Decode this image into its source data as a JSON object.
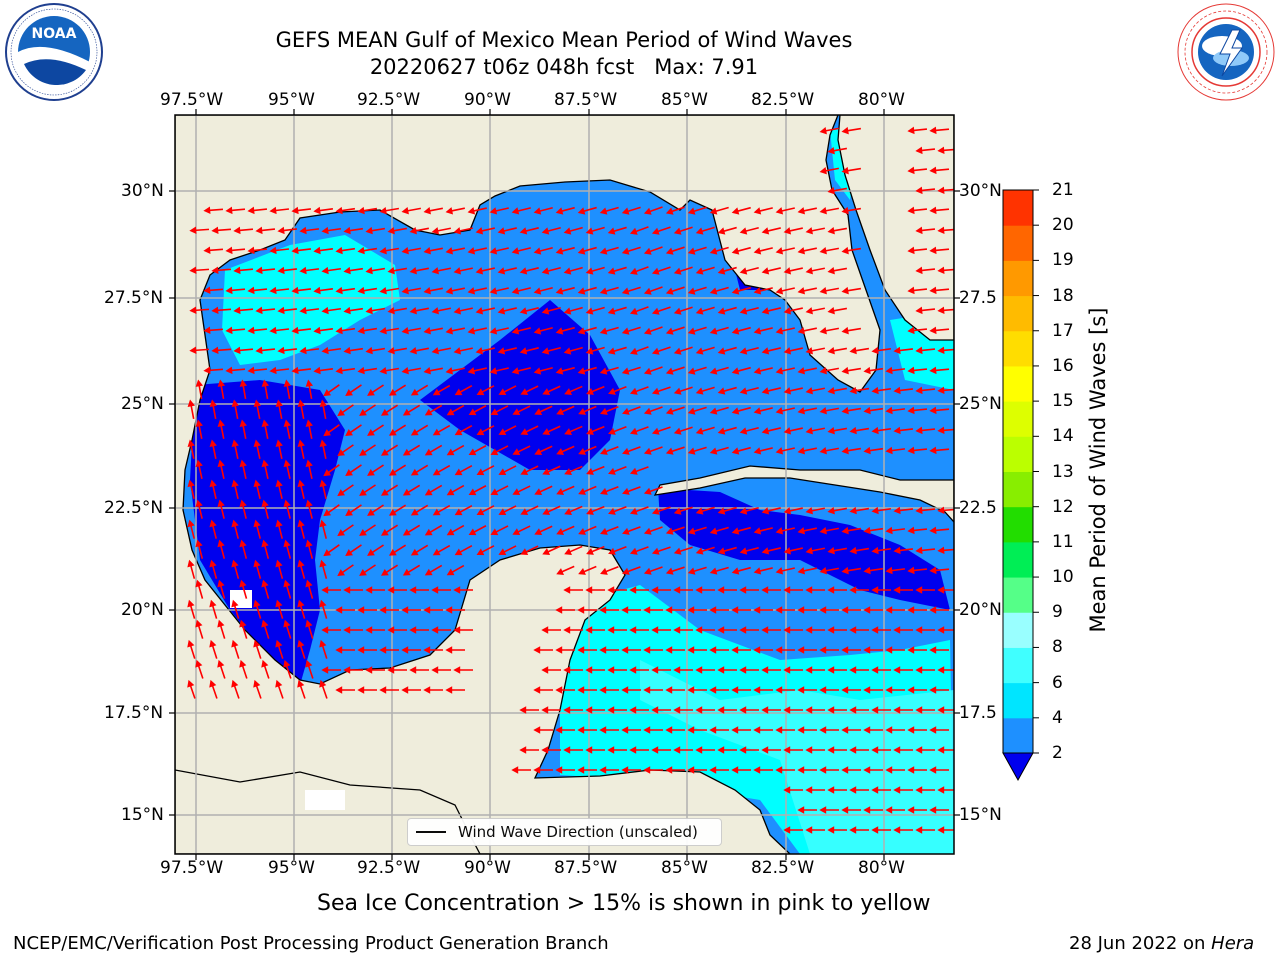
{
  "title": {
    "line1": "GEFS MEAN Gulf of Mexico Mean Period of Wind Waves",
    "line2": "20220627 t06z 048h fcst   Max: 7.91"
  },
  "logos": {
    "left": "NOAA",
    "right": "NATIONAL WEATHER SERVICE"
  },
  "map": {
    "lon_labels": [
      "97.5°W",
      "95°W",
      "92.5°W",
      "90°W",
      "87.5°W",
      "85°W",
      "82.5°W",
      "80°W"
    ],
    "lat_labels_left": [
      "30°N",
      "27.5°N",
      "25°N",
      "22.5°N",
      "20°N",
      "17.5°N",
      "15°N"
    ],
    "lat_labels_right": [
      "30°N",
      "27.5",
      "25°N",
      "22.5",
      "20°N",
      "17.5",
      "15°N"
    ],
    "legend": "Wind Wave Direction (unscaled)",
    "colors": {
      "land": "#efeddc",
      "ocean_low": "#1e90ff",
      "ocean_lowest": "#0000ee",
      "ocean_mid": "#00ffff",
      "arrow": "#ff0000"
    }
  },
  "colorbar": {
    "label": "Mean Period of Wind Waves [s]",
    "ticks": [
      "2",
      "4",
      "6",
      "8",
      "9",
      "10",
      "11",
      "12",
      "13",
      "14",
      "15",
      "16",
      "17",
      "18",
      "19",
      "20",
      "21"
    ],
    "colors": [
      "#1e90ff",
      "#00e5ff",
      "#40ffff",
      "#99ffff",
      "#55ff88",
      "#00ee55",
      "#22dd00",
      "#88ee00",
      "#bbff00",
      "#ddff00",
      "#ffff00",
      "#ffdd00",
      "#ffbb00",
      "#ff9900",
      "#ff6600",
      "#ff3300",
      "#ff1100",
      "#ff0000"
    ],
    "extend_color": "#0000ee"
  },
  "caption": "Sea Ice Concentration > 15% is shown in pink to yellow",
  "footer": {
    "left": "NCEP/EMC/Verification Post Processing Product Generation Branch",
    "right_prefix": "28 Jun 2022 on ",
    "right_host": "Hera"
  }
}
